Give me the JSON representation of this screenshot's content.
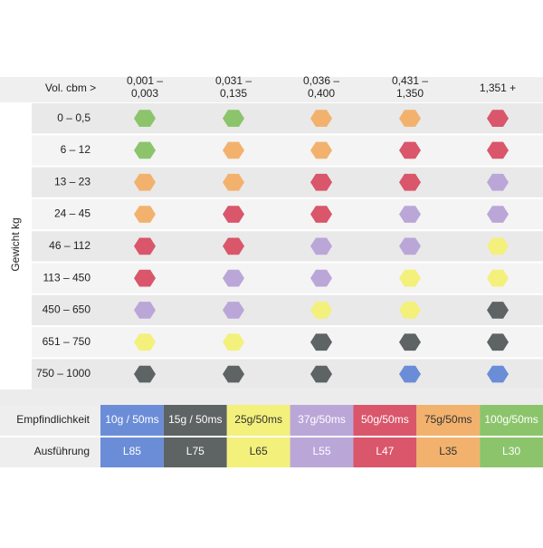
{
  "header": {
    "vol_label": "Vol. cbm >",
    "columns": [
      [
        "0,001 –",
        "0,003"
      ],
      [
        "0,031 –",
        "0,135"
      ],
      [
        "0,036 –",
        "0,400"
      ],
      [
        "0,431 –",
        "1,350"
      ],
      [
        "1,351 +"
      ]
    ]
  },
  "axis_label": "Gewicht kg",
  "rows": [
    {
      "label": "0 – 0,5",
      "cells": [
        "#8cc46c",
        "#8cc46c",
        "#f2b26e",
        "#f2b26e",
        "#d9566b"
      ]
    },
    {
      "label": "6 – 12",
      "cells": [
        "#8cc46c",
        "#f2b26e",
        "#f2b26e",
        "#d9566b",
        "#d9566b"
      ]
    },
    {
      "label": "13 – 23",
      "cells": [
        "#f2b26e",
        "#f2b26e",
        "#d9566b",
        "#d9566b",
        "#bba6d8"
      ]
    },
    {
      "label": "24 – 45",
      "cells": [
        "#f2b26e",
        "#d9566b",
        "#d9566b",
        "#bba6d8",
        "#bba6d8"
      ]
    },
    {
      "label": "46 – 112",
      "cells": [
        "#d9566b",
        "#d9566b",
        "#bba6d8",
        "#bba6d8",
        "#f3f07c"
      ]
    },
    {
      "label": "113 – 450",
      "cells": [
        "#d9566b",
        "#bba6d8",
        "#bba6d8",
        "#f3f07c",
        "#f3f07c"
      ]
    },
    {
      "label": "450 – 650",
      "cells": [
        "#bba6d8",
        "#bba6d8",
        "#f3f07c",
        "#f3f07c",
        "#5e6363"
      ]
    },
    {
      "label": "651 – 750",
      "cells": [
        "#f3f07c",
        "#f3f07c",
        "#5e6363",
        "#5e6363",
        "#5e6363"
      ]
    },
    {
      "label": "750 – 1000",
      "cells": [
        "#5e6363",
        "#5e6363",
        "#5e6363",
        "#6b8dd8",
        "#6b8dd8"
      ]
    }
  ],
  "legend": {
    "row_labels": [
      "Empfindlichkeit",
      "Ausführung"
    ],
    "items": [
      {
        "sensitivity": "10g / 50ms",
        "model": "L85",
        "color": "#6b8dd8"
      },
      {
        "sensitivity": "15g / 50ms",
        "model": "L75",
        "color": "#5e6363"
      },
      {
        "sensitivity": "25g/50ms",
        "model": "L65",
        "color": "#f3f07c"
      },
      {
        "sensitivity": "37g/50ms",
        "model": "L55",
        "color": "#bba6d8"
      },
      {
        "sensitivity": "50g/50ms",
        "model": "L47",
        "color": "#d9566b"
      },
      {
        "sensitivity": "75g/50ms",
        "model": "L35",
        "color": "#f2b26e"
      },
      {
        "sensitivity": "100g/50ms",
        "model": "L30",
        "color": "#8cc46c"
      }
    ]
  }
}
